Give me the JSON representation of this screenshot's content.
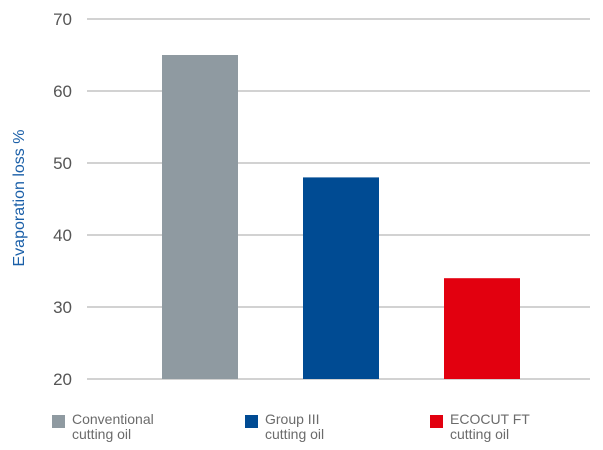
{
  "chart_data": {
    "type": "bar",
    "title": "",
    "xlabel": "",
    "ylabel": "Evaporation loss %",
    "ylim": [
      20,
      70
    ],
    "yticks": [
      20,
      30,
      40,
      50,
      60,
      70
    ],
    "grid": true,
    "legend_position": "bottom",
    "categories": [
      "Conventional cutting oil",
      "Group III cutting oil",
      "ECOCUT FT cutting oil"
    ],
    "values": [
      65,
      48,
      34
    ],
    "colors": [
      "#8f9aa1",
      "#004b93",
      "#e2000f"
    ]
  },
  "legend": {
    "items": [
      {
        "line1": "Conventional",
        "line2": "cutting oil",
        "color": "#8f9aa1"
      },
      {
        "line1": "Group III",
        "line2": "cutting oil",
        "color": "#004b93"
      },
      {
        "line1": "ECOCUT FT",
        "line2": "cutting oil",
        "color": "#e2000f"
      }
    ]
  }
}
